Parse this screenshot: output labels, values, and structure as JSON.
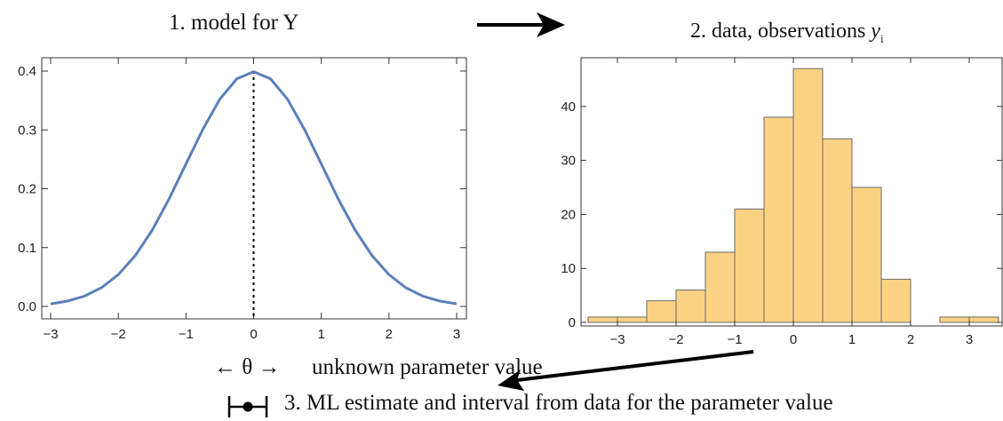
{
  "captions": {
    "model": "1. model for Y",
    "data_prefix": "2. data, observations ",
    "data_var": "y",
    "data_sub": "i",
    "theta": "← θ →",
    "unknown": "unknown parameter value",
    "estimate": "3. ML estimate and interval from data for the parameter value"
  },
  "colors": {
    "curve": "#5b80b8",
    "bar_fill": "#fbd283",
    "bar_stroke": "#6b6b6b",
    "axis": "#333333"
  },
  "chart_data": [
    {
      "type": "line",
      "title": "1. model for Y",
      "xlim": [
        -3,
        3
      ],
      "ylim": [
        0,
        0.4
      ],
      "xticks": [
        -3,
        -2,
        -1,
        0,
        1,
        2,
        3
      ],
      "yticks": [
        0.0,
        0.1,
        0.2,
        0.3,
        0.4
      ],
      "xtick_labels": [
        "−3",
        "−2",
        "−1",
        "0",
        "1",
        "2",
        "3"
      ],
      "ytick_labels": [
        "0.0",
        "0.1",
        "0.2",
        "0.3",
        "0.4"
      ],
      "series": [
        {
          "x": [
            -3.0,
            -2.75,
            -2.5,
            -2.25,
            -2.0,
            -1.75,
            -1.5,
            -1.25,
            -1.0,
            -0.75,
            -0.5,
            -0.25,
            0.0,
            0.25,
            0.5,
            0.75,
            1.0,
            1.25,
            1.5,
            1.75,
            2.0,
            2.25,
            2.5,
            2.75,
            3.0
          ],
          "y": [
            0.0044,
            0.0091,
            0.0175,
            0.0317,
            0.054,
            0.0863,
            0.1295,
            0.1826,
            0.242,
            0.3011,
            0.3521,
            0.3867,
            0.3989,
            0.3867,
            0.3521,
            0.3011,
            0.242,
            0.1826,
            0.1295,
            0.0863,
            0.054,
            0.0317,
            0.0175,
            0.0091,
            0.0044
          ]
        }
      ],
      "vline_x": 0
    },
    {
      "type": "bar",
      "title": "2. data, observations y_i",
      "bin_width": 0.5,
      "bin_starts": [
        -3.5,
        -3.0,
        -2.5,
        -2.0,
        -1.5,
        -1.0,
        -0.5,
        0.0,
        0.5,
        1.0,
        1.5,
        2.0,
        2.5,
        3.0
      ],
      "values": [
        1,
        1,
        4,
        6,
        13,
        21,
        38,
        47,
        34,
        25,
        8,
        0,
        1,
        1
      ],
      "xlim": [
        -3.5,
        3.5
      ],
      "ylim": [
        0,
        50
      ],
      "xticks": [
        -3,
        -2,
        -1,
        0,
        1,
        2,
        3
      ],
      "yticks": [
        0,
        10,
        20,
        30,
        40
      ],
      "xtick_labels": [
        "−3",
        "−2",
        "−1",
        "0",
        "1",
        "2",
        "3"
      ],
      "ytick_labels": [
        "0",
        "10",
        "20",
        "30",
        "40"
      ]
    }
  ]
}
